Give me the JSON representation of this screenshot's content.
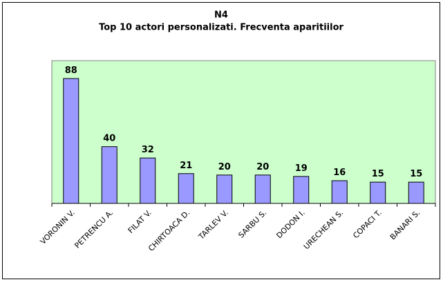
{
  "chart_data": {
    "type": "bar",
    "title": "N4",
    "subtitle": "Top 10 actori personalizati. Frecventa aparitiilor",
    "categories": [
      "VORONIN V.",
      "PETRENCU A.",
      "FILAT V.",
      "CHIRTOACA D.",
      "TARLEV V.",
      "SARBU S.",
      "DODON I.",
      "URECHEAN S.",
      "COPACI T.",
      "BANARI S."
    ],
    "values": [
      88,
      40,
      32,
      21,
      20,
      20,
      19,
      16,
      15,
      15
    ],
    "color": "#9999ff",
    "background": "#ccffcc"
  }
}
